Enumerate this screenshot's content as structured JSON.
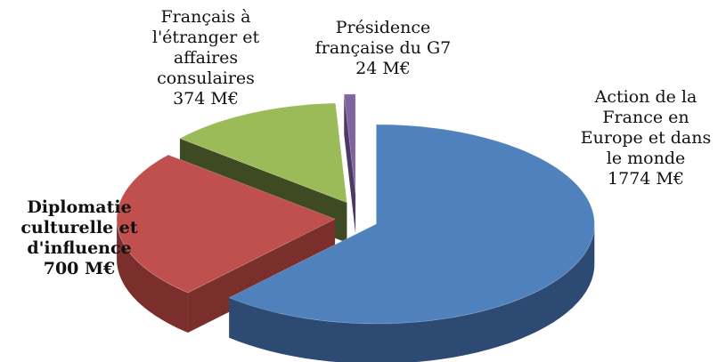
{
  "chart_data": {
    "type": "pie",
    "title": "",
    "unit": "M€",
    "series": [
      {
        "name": "",
        "slices": [
          {
            "label_lines": [
              "Action de la",
              "France en",
              "Europe et dans",
              "le monde"
            ],
            "value_text": "1774 M€",
            "value": 1774,
            "color": "#4f81bd",
            "dark": "#2c4a72",
            "bold": false
          },
          {
            "label_lines": [
              "Diplomatie",
              "culturelle et",
              "d'influence"
            ],
            "value_text": "700 M€",
            "value": 700,
            "color": "#c0504d",
            "dark": "#7a2f2d",
            "bold": true
          },
          {
            "label_lines": [
              "Français à",
              "l'étranger et",
              "affaires",
              "consulaires"
            ],
            "value_text": "374 M€",
            "value": 374,
            "color": "#9bbb59",
            "dark": "#3d4a22",
            "bold": false
          },
          {
            "label_lines": [
              "Présidence",
              "française du G7"
            ],
            "value_text": "24 M€",
            "value": 24,
            "color": "#8064a2",
            "dark": "#4b3a63",
            "bold": false
          }
        ]
      }
    ],
    "legend": "none",
    "exploded": true,
    "style": "3d"
  }
}
